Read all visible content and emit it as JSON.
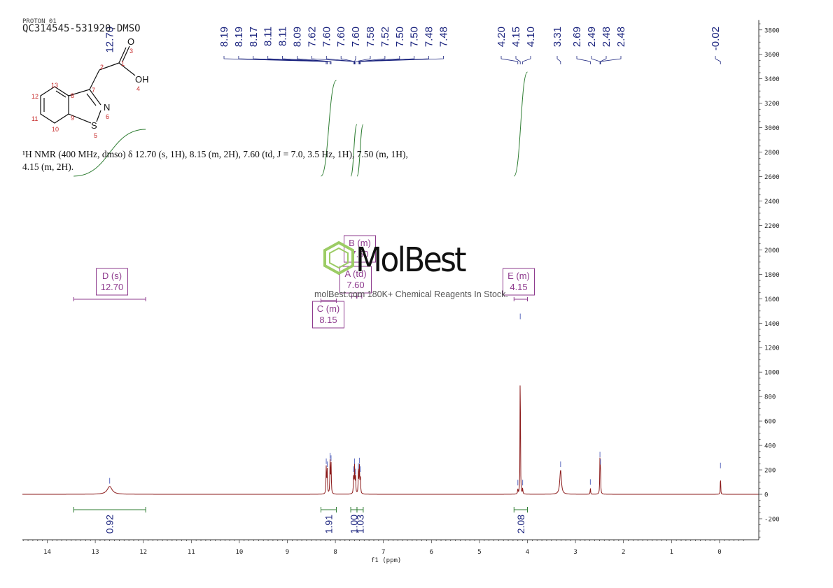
{
  "chart_data": {
    "type": "line",
    "title": "QC314545-531920-DMSO",
    "subtitle": "PROTON_01",
    "xlabel": "f1 (ppm)",
    "ylabel": "",
    "xlim": [
      14.7,
      -0.9
    ],
    "ylim": [
      -370,
      3880
    ],
    "x_ticks": [
      "14",
      "13",
      "12",
      "11",
      "10",
      "9",
      "8",
      "7",
      "6",
      "5",
      "4",
      "3",
      "2",
      "1",
      "0"
    ],
    "y_ticks": [
      "3800",
      "3600",
      "3400",
      "3200",
      "3000",
      "2800",
      "2600",
      "2400",
      "2200",
      "2000",
      "1800",
      "1600",
      "1400",
      "1200",
      "1000",
      "800",
      "600",
      "400",
      "200",
      "0",
      "-200"
    ],
    "peaks": [
      {
        "ppm": 12.7,
        "height": 65,
        "width": 0.06
      },
      {
        "ppm": 8.19,
        "height": 225,
        "width": 0.006
      },
      {
        "ppm": 8.17,
        "height": 200,
        "width": 0.006
      },
      {
        "ppm": 8.11,
        "height": 270,
        "width": 0.006
      },
      {
        "ppm": 8.09,
        "height": 250,
        "width": 0.006
      },
      {
        "ppm": 7.62,
        "height": 160,
        "width": 0.006
      },
      {
        "ppm": 7.6,
        "height": 225,
        "width": 0.006
      },
      {
        "ppm": 7.58,
        "height": 140,
        "width": 0.006
      },
      {
        "ppm": 7.52,
        "height": 185,
        "width": 0.006
      },
      {
        "ppm": 7.5,
        "height": 230,
        "width": 0.006
      },
      {
        "ppm": 7.48,
        "height": 160,
        "width": 0.006
      },
      {
        "ppm": 4.2,
        "height": 50,
        "width": 0.005
      },
      {
        "ppm": 4.15,
        "height": 1410,
        "width": 0.004
      },
      {
        "ppm": 4.1,
        "height": 50,
        "width": 0.005
      },
      {
        "ppm": 3.31,
        "height": 200,
        "width": 0.02
      },
      {
        "ppm": 2.69,
        "height": 55,
        "width": 0.005
      },
      {
        "ppm": 2.49,
        "height": 280,
        "width": 0.005
      },
      {
        "ppm": 2.48,
        "height": 220,
        "width": 0.005
      },
      {
        "ppm": -0.02,
        "height": 190,
        "width": 0.004
      }
    ],
    "peak_labels": [
      "8.19",
      "8.19",
      "8.17",
      "8.11",
      "8.11",
      "8.09",
      "7.62",
      "7.60",
      "7.60",
      "7.60",
      "7.58",
      "7.52",
      "7.50",
      "7.50",
      "7.48",
      "7.48",
      "4.20",
      "4.15",
      "4.10",
      "3.31",
      "2.69",
      "2.49",
      "2.48",
      "2.48",
      "-0.02",
      "12.70"
    ],
    "multiplets": [
      {
        "label": "D (s)",
        "shift": "12.70",
        "ppm": 12.7,
        "range": [
          13.45,
          11.95
        ]
      },
      {
        "label": "B (m)",
        "shift": "7.50",
        "ppm": 7.5,
        "range": [
          7.56,
          7.45
        ]
      },
      {
        "label": "A (td)",
        "shift": "7.60",
        "ppm": 7.6,
        "range": [
          7.66,
          7.55
        ]
      },
      {
        "label": "C (m)",
        "shift": "8.15",
        "ppm": 8.15,
        "range": [
          8.3,
          7.98
        ]
      },
      {
        "label": "E (m)",
        "shift": "4.15",
        "ppm": 4.15,
        "range": [
          4.28,
          4.0
        ]
      }
    ],
    "integrals": [
      {
        "value": "0.92",
        "range": [
          13.45,
          11.95
        ]
      },
      {
        "value": "1.91",
        "range": [
          8.3,
          7.98
        ]
      },
      {
        "value": "1.00",
        "range": [
          7.68,
          7.55
        ]
      },
      {
        "value": "1.03",
        "range": [
          7.55,
          7.42
        ]
      },
      {
        "value": "2.08",
        "range": [
          4.28,
          4.0
        ]
      }
    ],
    "colors": {
      "spectrum": "#8b1a1a",
      "peak_label": "#1a237e",
      "integral": "#2e7d32",
      "multiplet": "#8e3b8e",
      "axis": "#333333"
    }
  },
  "text": {
    "title_main": "QC314545-531920-DMSO",
    "title_overlay": "PROTON_01",
    "nmr_line1": "¹H NMR (400 MHz, dmso) δ 12.70 (s, 1H), 8.15 (m, 2H), 7.60 (td, J = 7.0, 3.5 Hz, 1H), 7.50 (m, 1H),",
    "nmr_line2": "4.15 (m, 2H).",
    "watermark_brand": "MolBest",
    "watermark_tag": "molBest.com 180K+ Chemical Reagents In Stock.",
    "xlabel": "f1 (ppm)"
  },
  "structure": {
    "atoms": [
      "O",
      "3",
      "1",
      "2",
      "OH",
      "4",
      "13",
      "12",
      "11",
      "10",
      "8",
      "9",
      "7",
      "N",
      "6",
      "S",
      "5"
    ]
  }
}
